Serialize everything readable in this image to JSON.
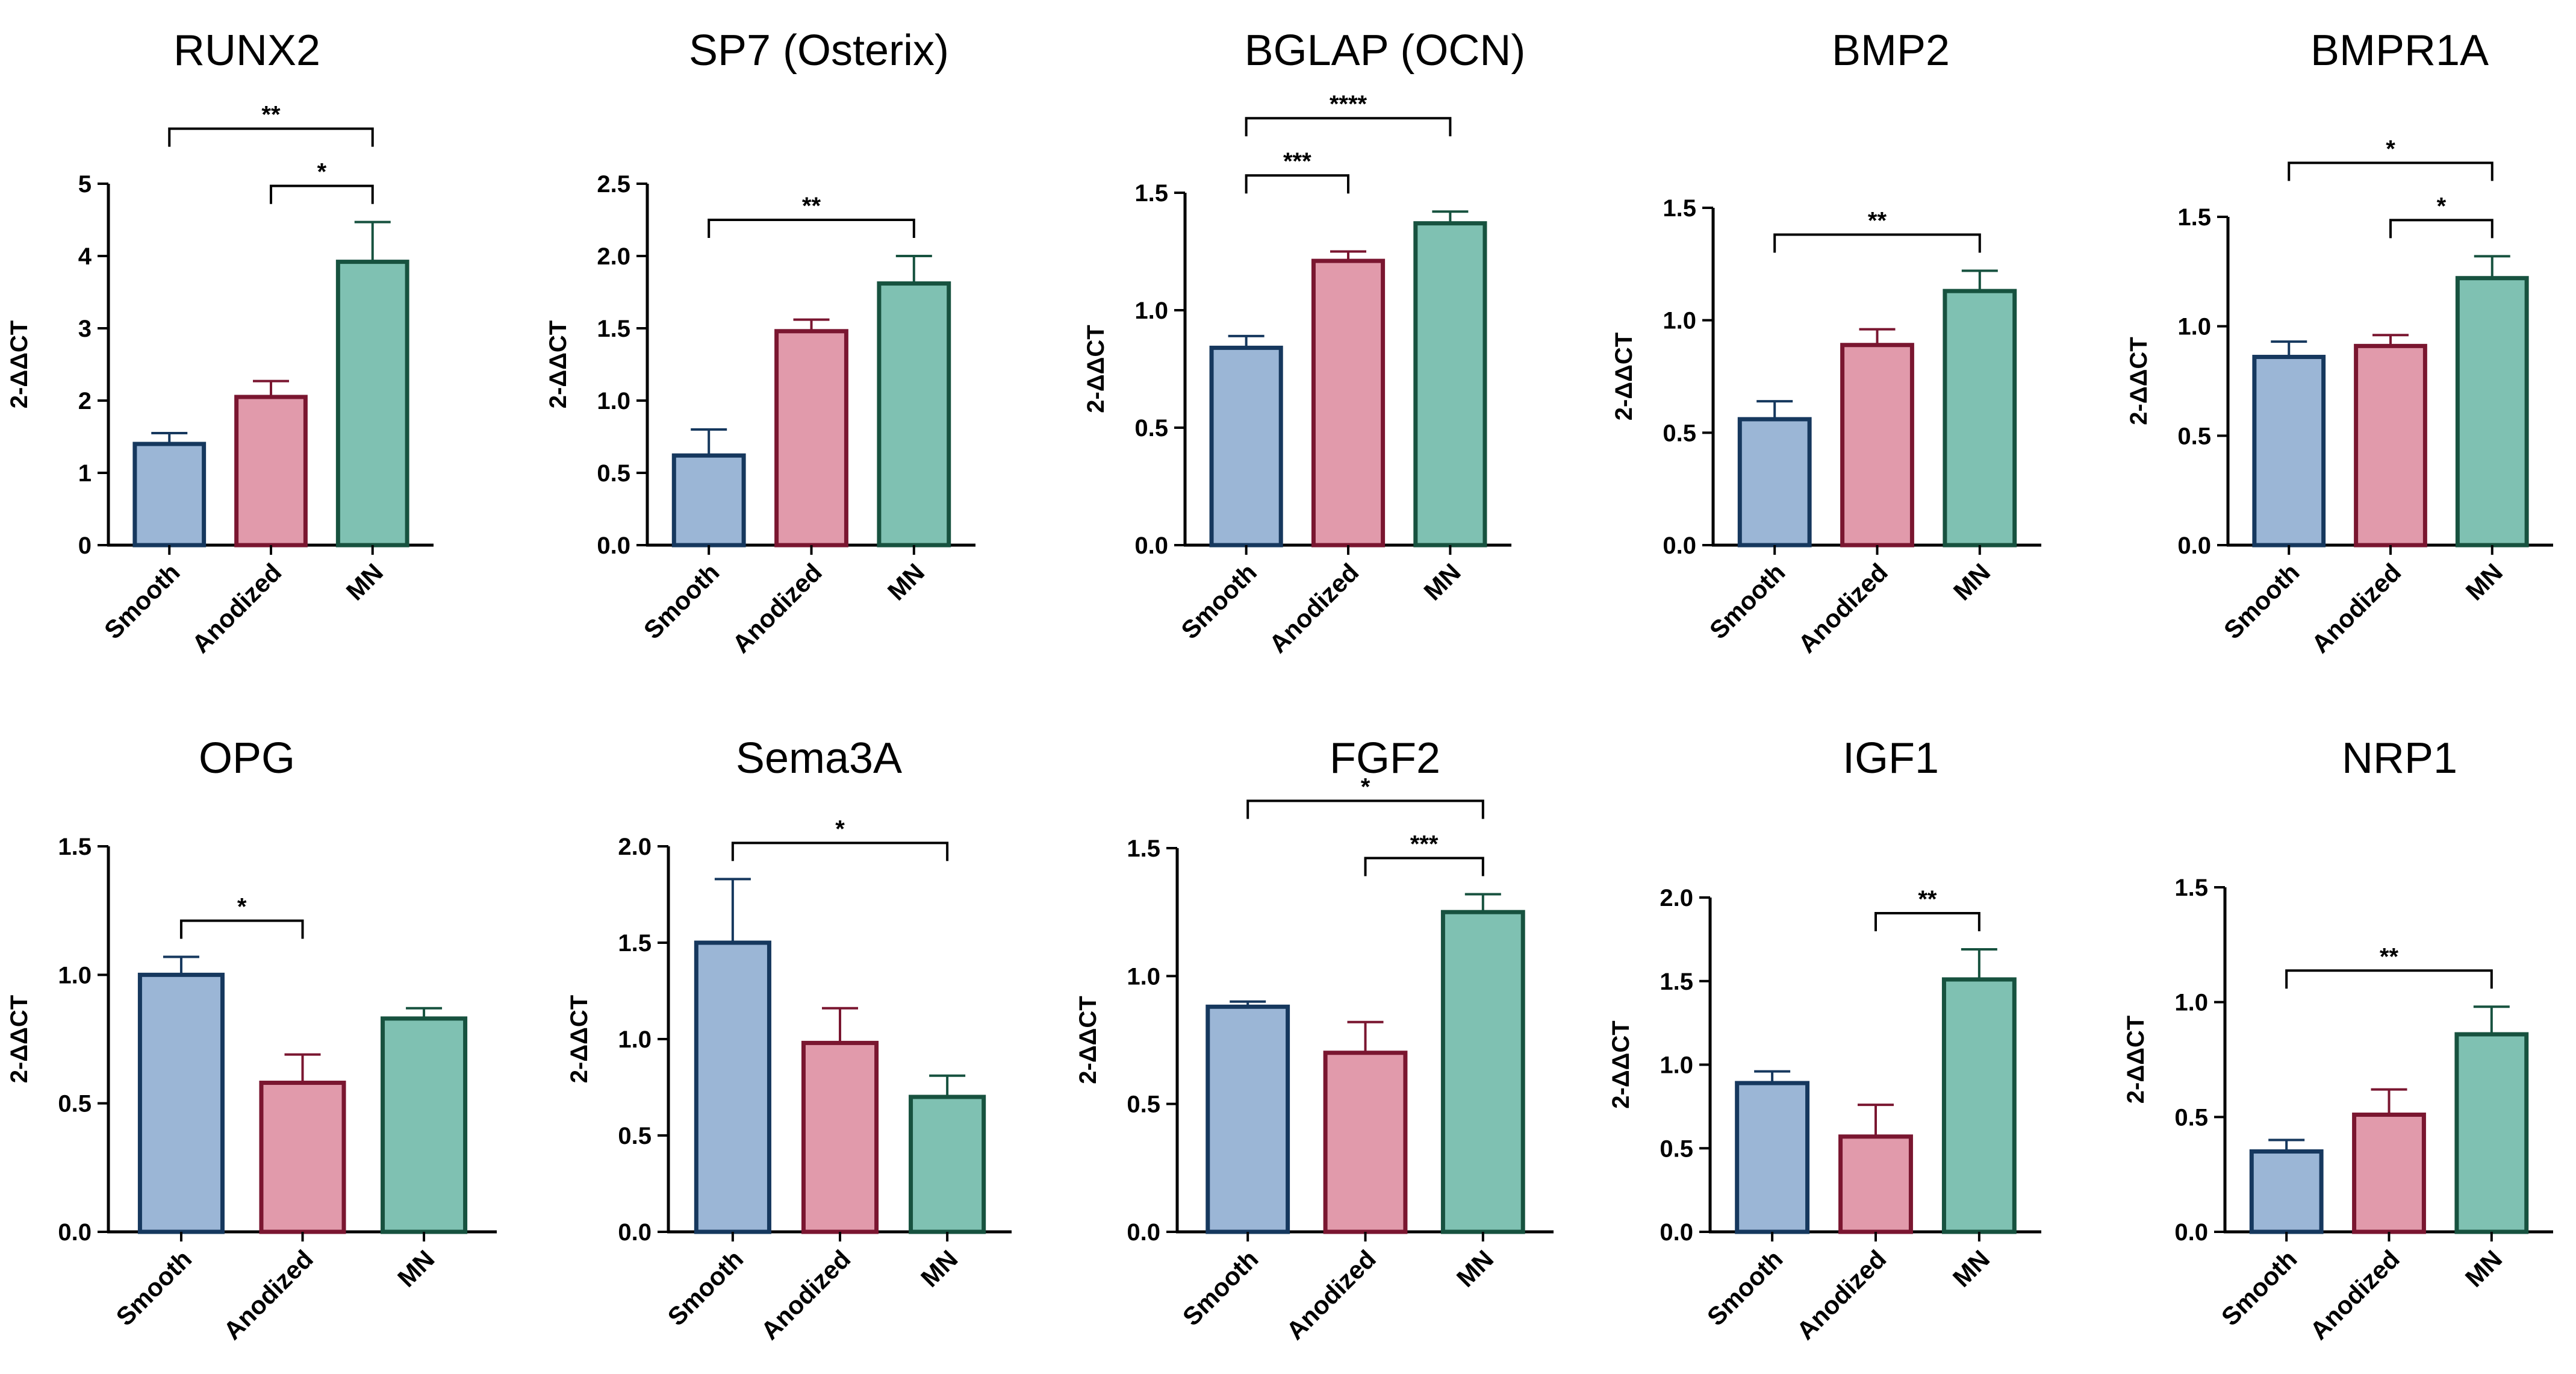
{
  "figure": {
    "description_colors": {
      "Smooth": {
        "fill": "#9bb6d6",
        "stroke": "#16385e"
      },
      "Anodized": {
        "fill": "#e19aab",
        "stroke": "#7a1630"
      },
      "MN": {
        "fill": "#7fc1b2",
        "stroke": "#17523f"
      }
    }
  },
  "chart_data": [
    {
      "type": "bar",
      "title": "RUNX2",
      "ylabel": "2-ΔΔCT",
      "categories": [
        "Smooth",
        "Anodized",
        "MN"
      ],
      "values": [
        1.4,
        2.05,
        3.92
      ],
      "errors": [
        0.15,
        0.22,
        0.55
      ],
      "ylim": [
        0,
        5
      ],
      "yticks": [
        "0",
        "1",
        "2",
        "3",
        "4",
        "5"
      ],
      "significance": [
        {
          "from": 0,
          "to": 2,
          "label": "**",
          "level": 2
        },
        {
          "from": 1,
          "to": 2,
          "label": "*",
          "level": 1
        }
      ]
    },
    {
      "type": "bar",
      "title": "SP7 (Osterix)",
      "ylabel": "2-ΔΔCT",
      "categories": [
        "Smooth",
        "Anodized",
        "MN"
      ],
      "values": [
        0.62,
        1.48,
        1.81
      ],
      "errors": [
        0.18,
        0.08,
        0.19
      ],
      "ylim": [
        0,
        2.5
      ],
      "yticks": [
        "0.0",
        "0.5",
        "1.0",
        "1.5",
        "2.0",
        "2.5"
      ],
      "significance": [
        {
          "from": 0,
          "to": 2,
          "label": "**",
          "level": 1
        }
      ]
    },
    {
      "type": "bar",
      "title": "BGLAP (OCN)",
      "ylabel": "2-ΔΔCT",
      "categories": [
        "Smooth",
        "Anodized",
        "MN"
      ],
      "values": [
        0.84,
        1.21,
        1.37
      ],
      "errors": [
        0.05,
        0.04,
        0.05
      ],
      "ylim": [
        0,
        1.5
      ],
      "yticks": [
        "0.0",
        "0.5",
        "1.0",
        "1.5"
      ],
      "significance": [
        {
          "from": 0,
          "to": 2,
          "label": "****",
          "level": 2
        },
        {
          "from": 0,
          "to": 1,
          "label": "***",
          "level": 1
        }
      ]
    },
    {
      "type": "bar",
      "title": "BMP2",
      "ylabel": "2-ΔΔCT",
      "categories": [
        "Smooth",
        "Anodized",
        "MN"
      ],
      "values": [
        0.56,
        0.89,
        1.13
      ],
      "errors": [
        0.08,
        0.07,
        0.09
      ],
      "ylim": [
        0,
        1.5
      ],
      "yticks": [
        "0.0",
        "0.5",
        "1.0",
        "1.5"
      ],
      "significance": [
        {
          "from": 0,
          "to": 2,
          "label": "**",
          "level": 1
        }
      ]
    },
    {
      "type": "bar",
      "title": "BMPR1A",
      "ylabel": "2-ΔΔCT",
      "categories": [
        "Smooth",
        "Anodized",
        "MN"
      ],
      "values": [
        0.86,
        0.91,
        1.22
      ],
      "errors": [
        0.07,
        0.05,
        0.1
      ],
      "ylim": [
        0,
        1.5
      ],
      "yticks": [
        "0.0",
        "0.5",
        "1.0",
        "1.5"
      ],
      "significance": [
        {
          "from": 0,
          "to": 2,
          "label": "*",
          "level": 2
        },
        {
          "from": 1,
          "to": 2,
          "label": "*",
          "level": 1
        }
      ]
    },
    {
      "type": "bar",
      "title": "OPG",
      "ylabel": "2-ΔΔCT",
      "categories": [
        "Smooth",
        "Anodized",
        "MN"
      ],
      "values": [
        1.0,
        0.58,
        0.83
      ],
      "errors": [
        0.07,
        0.11,
        0.04
      ],
      "ylim": [
        0,
        1.5
      ],
      "yticks": [
        "0.0",
        "0.5",
        "1.0",
        "1.5"
      ],
      "significance": [
        {
          "from": 0,
          "to": 1,
          "label": "*",
          "level": 1
        }
      ]
    },
    {
      "type": "bar",
      "title": "Sema3A",
      "ylabel": "2-ΔΔCT",
      "categories": [
        "Smooth",
        "Anodized",
        "MN"
      ],
      "values": [
        1.5,
        0.98,
        0.7
      ],
      "errors": [
        0.33,
        0.18,
        0.11
      ],
      "ylim": [
        0,
        2.0
      ],
      "yticks": [
        "0.0",
        "0.5",
        "1.0",
        "1.5",
        "2.0"
      ],
      "significance": [
        {
          "from": 0,
          "to": 2,
          "label": "*",
          "level": 1
        }
      ]
    },
    {
      "type": "bar",
      "title": "FGF2",
      "ylabel": "2-ΔΔCT",
      "categories": [
        "Smooth",
        "Anodized",
        "MN"
      ],
      "values": [
        0.88,
        0.7,
        1.25
      ],
      "errors": [
        0.02,
        0.12,
        0.07
      ],
      "ylim": [
        0,
        1.5
      ],
      "yticks": [
        "0.0",
        "0.5",
        "1.0",
        "1.5"
      ],
      "significance": [
        {
          "from": 0,
          "to": 2,
          "label": "*",
          "level": 2
        },
        {
          "from": 1,
          "to": 2,
          "label": "***",
          "level": 1
        }
      ]
    },
    {
      "type": "bar",
      "title": "IGF1",
      "ylabel": "2-ΔΔCT",
      "categories": [
        "Smooth",
        "Anodized",
        "MN"
      ],
      "values": [
        0.89,
        0.57,
        1.51
      ],
      "errors": [
        0.07,
        0.19,
        0.18
      ],
      "ylim": [
        0,
        2.0
      ],
      "yticks": [
        "0.0",
        "0.5",
        "1.0",
        "1.5",
        "2.0"
      ],
      "significance": [
        {
          "from": 1,
          "to": 2,
          "label": "**",
          "level": 1
        }
      ]
    },
    {
      "type": "bar",
      "title": "NRP1",
      "ylabel": "2-ΔΔCT",
      "categories": [
        "Smooth",
        "Anodized",
        "MN"
      ],
      "values": [
        0.35,
        0.51,
        0.86
      ],
      "errors": [
        0.05,
        0.11,
        0.12
      ],
      "ylim": [
        0,
        1.5
      ],
      "yticks": [
        "0.0",
        "0.5",
        "1.0",
        "1.5"
      ],
      "significance": [
        {
          "from": 0,
          "to": 2,
          "label": "**",
          "level": 1
        }
      ]
    }
  ]
}
